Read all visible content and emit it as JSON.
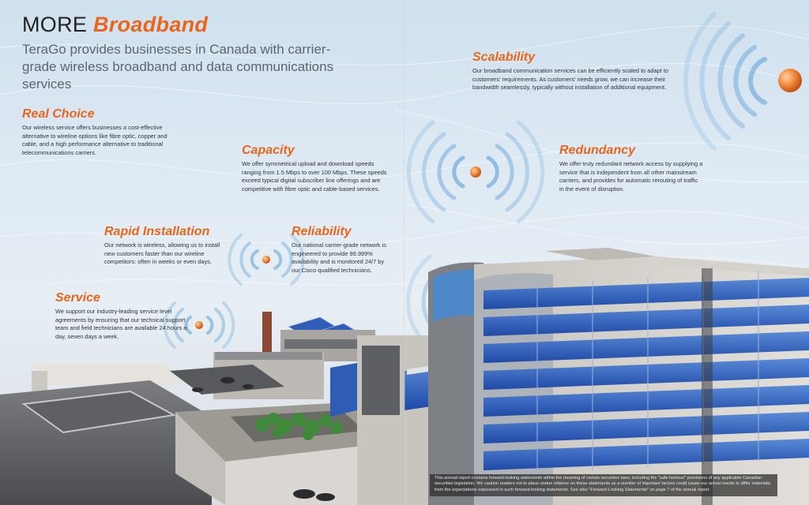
{
  "header": {
    "title_prefix": "MORE",
    "title_accent": "Broadband",
    "subtitle": "TeraGo provides businesses in Canada with carrier-grade wireless broadband and data communications services"
  },
  "sections": {
    "real_choice": {
      "title": "Real Choice",
      "body": "Our wireless service offers businesses a cost-effective alternative to wireline options like fibre optic, copper and cable, and a high performance alternative to traditional telecommunications carriers."
    },
    "capacity": {
      "title": "Capacity",
      "body": "We offer symmetrical upload and download speeds ranging from 1.5 Mbps to over 100 Mbps. These speeds exceed typical digital subscriber line offerings and are competitive with fibre optic and cable-based services."
    },
    "rapid_installation": {
      "title": "Rapid Installation",
      "body": "Our network is wireless, allowing us to install new customers faster than our wireline competitors: often in weeks or even days."
    },
    "reliability": {
      "title": "Reliability",
      "body": "Our national carrier-grade network is engineered to provide 99.999% availability and is monitored 24/7 by our Cisco qualified technicians."
    },
    "service": {
      "title": "Service",
      "body": "We support our industry-leading service level agreements by ensuring that our technical support team and field technicians are available 24 hours a day, seven days a week."
    },
    "scalability": {
      "title": "Scalability",
      "body": "Our broadband communication services can be efficiently scaled to adapt to customers' requirements. As customers' needs grow, we can increase their bandwidth seamlessly, typically without installation of additional equipment."
    },
    "redundancy": {
      "title": "Redundancy",
      "body": "We offer truly redundant network access by supplying a service that is independent from all other mainstream carriers, and provides for automatic rerouting of traffic in the event of disruption."
    }
  },
  "footer": {
    "disclaimer": "This annual report contains forward-looking statements within the meaning of certain securities laws, including the \"safe harbour\" provisions of any applicable Canadian securities legislation. We caution readers not to place undue reliance on these statements as a number of important factors could cause our actual results to differ materially from the expectations expressed in such forward-looking statements. See also \"Forward-Looking Statements\" on page 7 of the annual report."
  },
  "colors": {
    "accent": "#e8661c",
    "signal_blue": "#5b9fd6",
    "building_glass": "#2f5db5"
  },
  "icons": [
    "wireless-signal-icon"
  ]
}
